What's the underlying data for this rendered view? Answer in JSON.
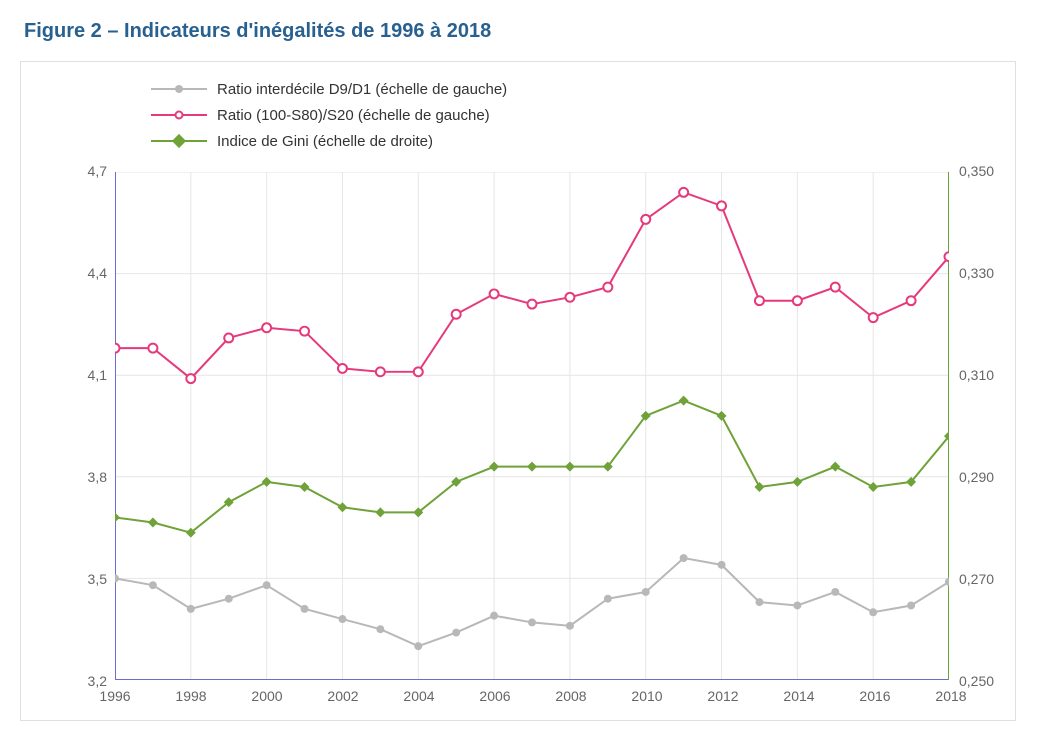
{
  "title": "Figure 2 – Indicateurs d'inégalités de 1996 à 2018",
  "title_color": "#286090",
  "title_fontsize": 20,
  "chart": {
    "type": "line",
    "background_color": "#ffffff",
    "border_color": "#e0e0e0",
    "grid_color": "#e6e6e6",
    "axis_text_color": "#666666",
    "axis_fontsize": 14,
    "x": {
      "min": 1996,
      "max": 2018,
      "tick_step": 2,
      "ticks": [
        1996,
        1998,
        2000,
        2002,
        2004,
        2006,
        2008,
        2010,
        2012,
        2014,
        2016,
        2018
      ],
      "baseline_color": "#6b6bd6"
    },
    "y_left": {
      "min": 3.2,
      "max": 4.7,
      "tick_step": 0.3,
      "ticks": [
        "3,2",
        "3,5",
        "3,8",
        "4,1",
        "4,4",
        "4,7"
      ],
      "axis_line_color": "#6b6bd6"
    },
    "y_right": {
      "min": 0.25,
      "max": 0.35,
      "tick_step": 0.02,
      "ticks": [
        "0,250",
        "0,270",
        "0,290",
        "0,310",
        "0,330",
        "0,350"
      ],
      "axis_line_color": "#6fa238"
    },
    "legend": {
      "items": [
        {
          "key": "d9d1",
          "label": "Ratio interdécile D9/D1 (échelle de gauche)"
        },
        {
          "key": "s80s20",
          "label": "Ratio (100-S80)/S20 (échelle de gauche)"
        },
        {
          "key": "gini",
          "label": "Indice de Gini (échelle de droite)"
        }
      ]
    },
    "series": {
      "d9d1": {
        "axis": "left",
        "color": "#b8b8b8",
        "marker": "circle-filled",
        "marker_size": 8,
        "line_width": 2,
        "years": [
          1996,
          1997,
          1998,
          1999,
          2000,
          2001,
          2002,
          2003,
          2004,
          2005,
          2006,
          2007,
          2008,
          2009,
          2010,
          2011,
          2012,
          2013,
          2014,
          2015,
          2016,
          2017,
          2018
        ],
        "values": [
          3.5,
          3.48,
          3.41,
          3.44,
          3.48,
          3.41,
          3.38,
          3.35,
          3.3,
          3.34,
          3.39,
          3.37,
          3.36,
          3.44,
          3.46,
          3.56,
          3.54,
          3.43,
          3.42,
          3.46,
          3.4,
          3.42,
          3.49
        ]
      },
      "s80s20": {
        "axis": "left",
        "color": "#e6397b",
        "marker": "circle-open",
        "marker_fill": "#ffffff",
        "marker_size": 9,
        "line_width": 2,
        "years": [
          1996,
          1997,
          1998,
          1999,
          2000,
          2001,
          2002,
          2003,
          2004,
          2005,
          2006,
          2007,
          2008,
          2009,
          2010,
          2011,
          2012,
          2013,
          2014,
          2015,
          2016,
          2017,
          2018
        ],
        "values": [
          4.18,
          4.18,
          4.09,
          4.21,
          4.24,
          4.23,
          4.12,
          4.11,
          4.11,
          4.28,
          4.34,
          4.31,
          4.33,
          4.36,
          4.56,
          4.64,
          4.6,
          4.32,
          4.32,
          4.36,
          4.27,
          4.32,
          4.45
        ]
      },
      "gini": {
        "axis": "right",
        "color": "#6fa238",
        "marker": "diamond-filled",
        "marker_size": 10,
        "line_width": 2,
        "years": [
          1996,
          1997,
          1998,
          1999,
          2000,
          2001,
          2002,
          2003,
          2004,
          2005,
          2006,
          2007,
          2008,
          2009,
          2010,
          2011,
          2012,
          2013,
          2014,
          2015,
          2016,
          2017,
          2018
        ],
        "values": [
          0.282,
          0.281,
          0.279,
          0.285,
          0.289,
          0.288,
          0.284,
          0.283,
          0.283,
          0.289,
          0.292,
          0.292,
          0.292,
          0.292,
          0.302,
          0.305,
          0.302,
          0.288,
          0.289,
          0.292,
          0.288,
          0.289,
          0.298
        ]
      }
    }
  }
}
